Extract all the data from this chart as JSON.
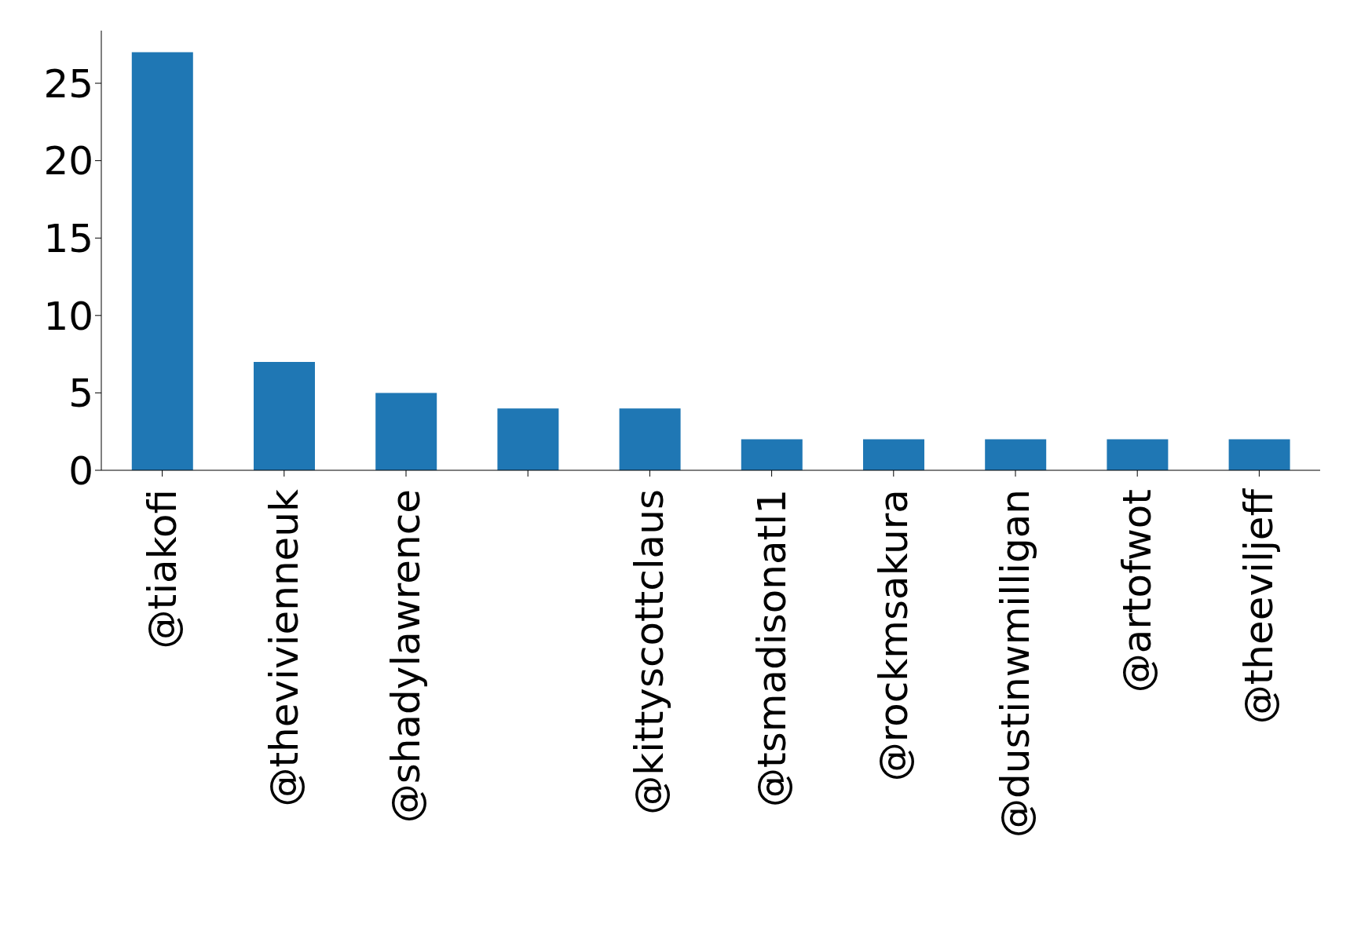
{
  "chart_data": {
    "type": "bar",
    "categories": [
      "@tiakofi",
      "@thevivienneuk",
      "@shadylawrence",
      null,
      "@kittyscottclaus",
      "@tsmadisonatl1",
      "@rockmsakura",
      "@dustinwmilligan",
      "@artofwot",
      "@theeviljeff"
    ],
    "values": [
      27,
      7,
      5,
      4,
      4,
      2,
      2,
      2,
      2,
      2
    ],
    "color": "#1f77b4",
    "ylim": [
      0,
      28.4
    ],
    "yticks": [
      0,
      5,
      10,
      15,
      20,
      25
    ],
    "grid": false,
    "legend": false
  }
}
